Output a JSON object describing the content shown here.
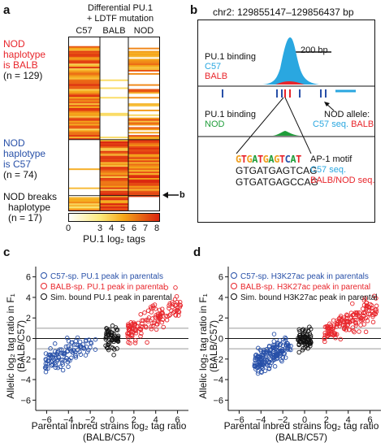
{
  "panel_a": {
    "label": "a",
    "header_line1": "Differential PU.1",
    "header_line2": "+ LDTF mutation",
    "columns": [
      "C57",
      "BALB",
      "NOD"
    ],
    "group1": {
      "l1": "NOD",
      "l2": "haplotype",
      "l3": "is BALB",
      "l4": "(n = 129)"
    },
    "group2": {
      "l1": "NOD",
      "l2": "haplotype",
      "l3": "is C57",
      "l4": "(n = 74)"
    },
    "group3": {
      "l1": "NOD breaks",
      "l2": "haplotype",
      "l3": "(n = 17)"
    },
    "arrow_label": "b",
    "colorbar_ticks": [
      "0",
      "3",
      "4",
      "5",
      "6",
      "7",
      "8"
    ],
    "colorbar_label": "PU.1 log₂ tags",
    "colors": {
      "low": "#ffffff",
      "mid": "#f5d614",
      "high": "#d9230f"
    }
  },
  "panel_b": {
    "label": "b",
    "coords": "chr2: 129855147–129856437 bp",
    "scale": "200 bp",
    "binding1": {
      "l1": "PU.1 binding",
      "l2": "C57",
      "l3": "BALB"
    },
    "binding2": {
      "l1": "PU.1 binding",
      "l2": "NOD"
    },
    "nod_allele": {
      "l1": "NOD allele:",
      "l2a": "C57 seq.",
      "l2b": "BALB"
    },
    "motif_logo": "GTGATGAGTCAT",
    "seq1": "GTGATGAGTCAG",
    "seq2": "GTGATGAGCCAG",
    "motif_label": "AP-1 motif",
    "seq1_label": "C57 seq.",
    "seq2_label": "BALB/NOD seq."
  },
  "panel_c": {
    "label": "c",
    "legend": [
      {
        "text": "C57-sp. PU.1 peak in parentals",
        "color": "#2850a8"
      },
      {
        "text": "BALB-sp. PU.1 peak in parental",
        "color": "#e8252b"
      },
      {
        "text": "Sim. bound PU.1 peak in parental",
        "color": "#111111"
      }
    ],
    "ylabel1": "Allelic log₂ tag ratio in F₁",
    "ylabel2": "(BALB/C57)",
    "xlabel1": "Parental inbred strains log₂ tag ratio",
    "xlabel2": "(BALB/C57)"
  },
  "panel_d": {
    "label": "d",
    "legend": [
      {
        "text": "C57-sp. H3K27ac peak in parentals",
        "color": "#2850a8"
      },
      {
        "text": "BALB-sp. H3K27ac peak in parental",
        "color": "#e8252b"
      },
      {
        "text": "Sim. bound H3K27ac peak in parental",
        "color": "#111111"
      }
    ],
    "ylabel1": "Allelic log₂ tag ratio in F₁",
    "ylabel2": "(BALB/C57)",
    "xlabel1": "Parental inbred strains log₂ tag ratio",
    "xlabel2": "(BALB/C57)"
  },
  "chart_data": [
    {
      "type": "scatter",
      "panel": "c",
      "xlim": [
        -7,
        7
      ],
      "ylim": [
        -7,
        7
      ],
      "xticks": [
        -6,
        -4,
        -2,
        0,
        2,
        4,
        6
      ],
      "yticks": [
        -6,
        -4,
        -2,
        0,
        2,
        4,
        6
      ],
      "grid": false,
      "reference_lines_y": [
        0,
        -1,
        1
      ],
      "series": [
        {
          "name": "C57-sp. PU.1 peak in parentals",
          "color": "#2850a8",
          "x_range": [
            -6.2,
            -1.4
          ],
          "y_trend": [
            -2.3,
            -0.4
          ],
          "n": 110
        },
        {
          "name": "BALB-sp. PU.1 peak in parental",
          "color": "#e8252b",
          "x_range": [
            1.4,
            6.4
          ],
          "y_trend": [
            0.6,
            3.5
          ],
          "n": 130
        },
        {
          "name": "Sim. bound PU.1 peak in parental",
          "color": "#111111",
          "x_range": [
            -0.6,
            0.6
          ],
          "y_range": [
            -1.6,
            1.8
          ],
          "n": 60
        }
      ]
    },
    {
      "type": "scatter",
      "panel": "d",
      "xlim": [
        -7,
        7
      ],
      "ylim": [
        -7,
        7
      ],
      "xticks": [
        -6,
        -4,
        -2,
        0,
        2,
        4,
        6
      ],
      "yticks": [
        -6,
        -4,
        -2,
        0,
        2,
        4,
        6
      ],
      "grid": false,
      "reference_lines_y": [
        0,
        -1,
        1
      ],
      "series": [
        {
          "name": "C57-sp. H3K27ac peak in parentals",
          "color": "#2850a8",
          "x_range": [
            -4.6,
            -1.2
          ],
          "y_trend": [
            -2.6,
            -0.6
          ],
          "n": 170
        },
        {
          "name": "BALB-sp. H3K27ac peak in parental",
          "color": "#e8252b",
          "x_range": [
            1.8,
            6.6
          ],
          "y_trend": [
            0.6,
            2.8
          ],
          "n": 150
        },
        {
          "name": "Sim. bound H3K27ac peak in parental",
          "color": "#111111",
          "x_range": [
            -0.6,
            0.6
          ],
          "y_range": [
            -2.2,
            1.8
          ],
          "n": 70
        }
      ]
    }
  ]
}
